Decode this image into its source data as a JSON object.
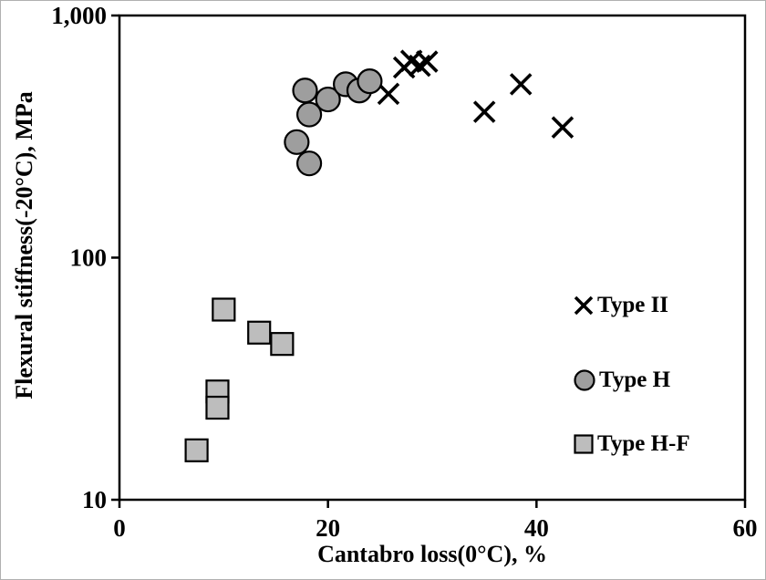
{
  "figure": {
    "background": "#ffffff",
    "border_color": "#b0b0b0"
  },
  "chart_data": {
    "type": "scatter",
    "title": "",
    "xlabel": "Cantabro loss(0°C), %",
    "ylabel": "Flexural stiffness(-20°C), MPa",
    "x_axis": {
      "min": 0,
      "max": 60,
      "scale": "linear",
      "ticks": [
        {
          "value": 0,
          "label": "0"
        },
        {
          "value": 20,
          "label": "20"
        },
        {
          "value": 40,
          "label": "40"
        },
        {
          "value": 60,
          "label": "60"
        }
      ]
    },
    "y_axis": {
      "min": 10,
      "max": 1000,
      "scale": "log",
      "ticks": [
        {
          "value": 10,
          "label": "10"
        },
        {
          "value": 100,
          "label": "100"
        },
        {
          "value": 1000,
          "label": "1,000"
        }
      ]
    },
    "grid": "off",
    "legend_position": "inside-right",
    "series": [
      {
        "name": "Type II",
        "marker": "x",
        "stroke": "#000000",
        "fill": "none",
        "points": [
          [
            25.8,
            475
          ],
          [
            27.3,
            610
          ],
          [
            28,
            650
          ],
          [
            28.8,
            620
          ],
          [
            29.5,
            645
          ],
          [
            35,
            400
          ],
          [
            38.5,
            520
          ],
          [
            42.5,
            345
          ]
        ]
      },
      {
        "name": "Type H",
        "marker": "circle",
        "stroke": "#000000",
        "fill": "#9e9e9e",
        "points": [
          [
            17.8,
            490
          ],
          [
            18.2,
            390
          ],
          [
            17,
            300
          ],
          [
            18.2,
            245
          ],
          [
            20,
            450
          ],
          [
            21.7,
            520
          ],
          [
            23,
            490
          ],
          [
            24,
            535
          ]
        ]
      },
      {
        "name": "Type H-F",
        "marker": "square",
        "stroke": "#000000",
        "fill": "#bdbdbd",
        "points": [
          [
            10,
            61
          ],
          [
            13.4,
            49
          ],
          [
            15.6,
            44
          ],
          [
            9.4,
            28
          ],
          [
            9.4,
            24
          ],
          [
            7.4,
            16
          ]
        ]
      }
    ]
  }
}
